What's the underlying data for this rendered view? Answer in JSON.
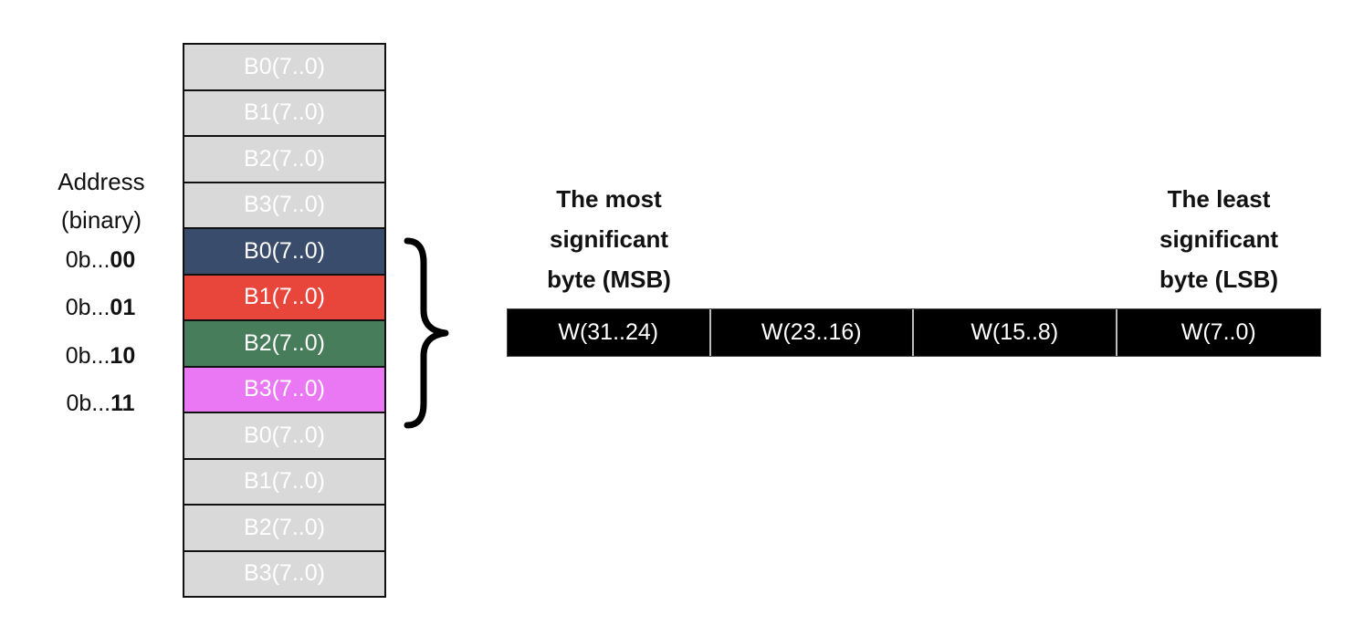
{
  "address_header": {
    "line1": "Address",
    "line2": "(binary)"
  },
  "address_labels": [
    {
      "prefix": "0b...",
      "bits": "00"
    },
    {
      "prefix": "0b...",
      "bits": "01"
    },
    {
      "prefix": "0b...",
      "bits": "10"
    },
    {
      "prefix": "0b...",
      "bits": "11"
    }
  ],
  "memory_cells": [
    "B0(7..0)",
    "B1(7..0)",
    "B2(7..0)",
    "B3(7..0)",
    "B0(7..0)",
    "B1(7..0)",
    "B2(7..0)",
    "B3(7..0)",
    "B0(7..0)",
    "B1(7..0)",
    "B2(7..0)",
    "B3(7..0)"
  ],
  "highlight_colors": [
    "#3a4c6b",
    "#e8453b",
    "#477d5a",
    "#ea78f5"
  ],
  "word_cells": [
    "W(31..24)",
    "W(23..16)",
    "W(15..8)",
    "W(7..0)"
  ],
  "msb_label": {
    "line1": "The most",
    "line2": "significant",
    "line3": "byte (MSB)"
  },
  "lsb_label": {
    "line1": "The least",
    "line2": "significant",
    "line3": "byte (LSB)"
  }
}
